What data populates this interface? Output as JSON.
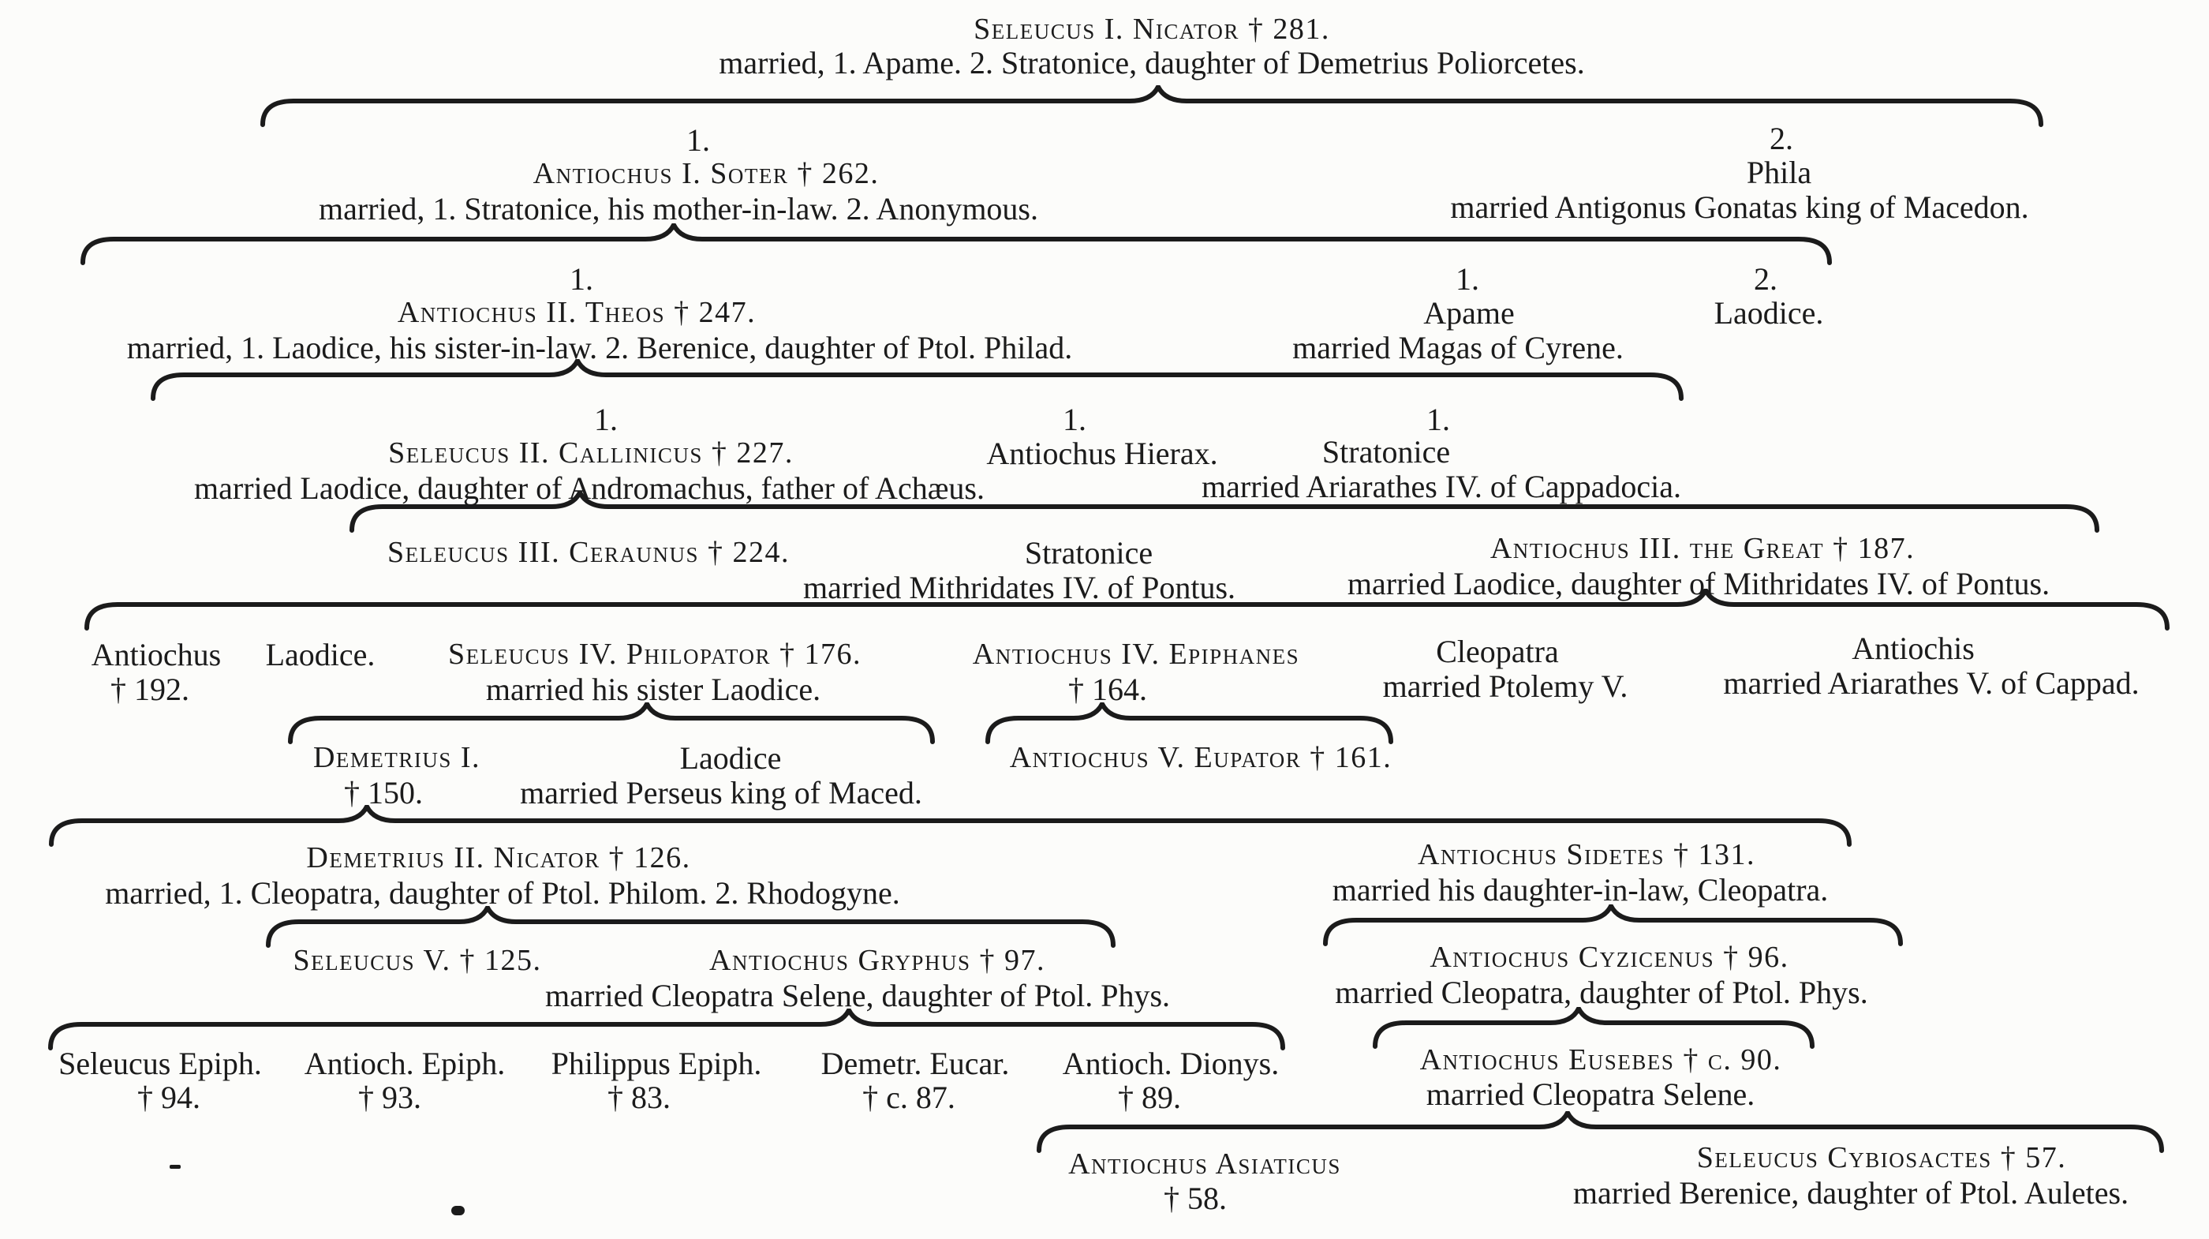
{
  "document": {
    "kind": "scanned genealogical table of the Seleucid dynasty",
    "colors": {
      "ink": "#1b1b1b",
      "paper": "#fcfcfa"
    }
  },
  "nodes": {
    "seleucus1": {
      "name": "Seleucus I. Nicator † 281.",
      "married": "married, 1. Apame.  2. Stratonice, daughter of Demetrius Poliorcetes."
    },
    "antiochus1": {
      "order": "1.",
      "name": "Antiochus I. Soter † 262.",
      "married": "married, 1. Stratonice, his mother-in-law.  2. Anonymous."
    },
    "phila": {
      "order": "2.",
      "name": "Phila",
      "married": "married Antigonus Gonatas king of Macedon."
    },
    "antiochus2": {
      "order": "1.",
      "name": "Antiochus II. Theos † 247.",
      "married": "married, 1. Laodice, his sister-in-law.  2. Berenice, daughter of Ptol. Philad."
    },
    "apame": {
      "order": "1.",
      "name": "Apame",
      "married": "married Magas of Cyrene."
    },
    "laodice_a": {
      "order": "2.",
      "name": "Laodice."
    },
    "seleucus2": {
      "order": "1.",
      "name": "Seleucus II. Callinicus † 227.",
      "married": "married Laodice, daughter of Andromachus, father of Achæus."
    },
    "hierax": {
      "order": "1.",
      "name": "Antiochus Hierax."
    },
    "stratonice1": {
      "order": "1.",
      "name": "Stratonice",
      "married": "married Ariarathes IV. of Cappadocia."
    },
    "seleucus3": {
      "name": "Seleucus III. Ceraunus † 224."
    },
    "stratonice2": {
      "name": "Stratonice",
      "married": "married Mithridates IV. of Pontus."
    },
    "antiochus3": {
      "name": "Antiochus III. the Great † 187.",
      "married": "married Laodice, daughter of Mithridates IV. of Pontus."
    },
    "antiochus192": {
      "name": "Antiochus",
      "died": "† 192."
    },
    "laodice_b": {
      "name": "Laodice."
    },
    "seleucus4": {
      "name": "Seleucus IV. Philopator † 176.",
      "married": "married his sister Laodice."
    },
    "antiochus4": {
      "name": "Antiochus IV. Epiphanes",
      "died": "† 164."
    },
    "cleopatra": {
      "name": "Cleopatra",
      "married": "married Ptolemy V."
    },
    "antiochis": {
      "name": "Antiochis",
      "married": "married Ariarathes V. of Cappad."
    },
    "demetrius1": {
      "name": "Demetrius I.",
      "died": "† 150."
    },
    "laodice_c": {
      "name": "Laodice",
      "married": "married Perseus king of Maced."
    },
    "antiochus5": {
      "name": "Antiochus V. Eupator † 161."
    },
    "demetrius2": {
      "name": "Demetrius II. Nicator † 126.",
      "married": "married, 1. Cleopatra, daughter of Ptol. Philom.  2. Rhodogyne."
    },
    "sidetes": {
      "name": "Antiochus Sidetes † 131.",
      "married": "married his daughter-in-law, Cleopatra."
    },
    "seleucus5": {
      "name": "Seleucus V. † 125."
    },
    "gryphus": {
      "name": "Antiochus Gryphus † 97.",
      "married": "married Cleopatra Selene, daughter of Ptol. Phys."
    },
    "cyzicenus": {
      "name": "Antiochus Cyzicenus † 96.",
      "married": "married Cleopatra, daughter of Ptol. Phys."
    },
    "seleucusEpiph": {
      "name": "Seleucus Epiph.",
      "died": "† 94."
    },
    "antiochEpiph": {
      "name": "Antioch. Epiph.",
      "died": "† 93."
    },
    "philippus": {
      "name": "Philippus Epiph.",
      "died": "† 83."
    },
    "demetrEucar": {
      "name": "Demetr. Eucar.",
      "died": "† c. 87."
    },
    "antiochDionys": {
      "name": "Antioch. Dionys.",
      "died": "† 89."
    },
    "eusebes": {
      "name": "Antiochus Eusebes † c. 90.",
      "married": "married Cleopatra Selene."
    },
    "asiaticus": {
      "name": "Antiochus Asiaticus",
      "died": "† 58."
    },
    "cybiosactes": {
      "name": "Seleucus Cybiosactes † 57.",
      "married": "married Berenice, daughter of Ptol. Auletes."
    }
  }
}
